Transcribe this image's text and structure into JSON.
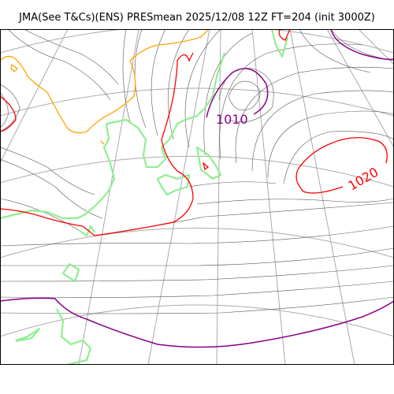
{
  "title": "JMA(See T&Cs)(ENS) PRESmean 2025/12/08 12Z FT=204 (init 3000Z)",
  "colors": {
    "background": "#ffffff",
    "graticule": "#aaaaaa",
    "isobar": "#555555",
    "coastline": "#90ee90",
    "isobar_1000": "#ff0000",
    "isobar_1010": "#880088",
    "isobar_990": "#ffa500"
  },
  "contour_labels": [
    {
      "text": "1010",
      "color": "#880088"
    },
    {
      "text": "1020",
      "color": "#ff0000"
    }
  ]
}
